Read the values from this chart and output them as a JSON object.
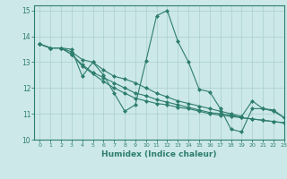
{
  "title": "",
  "xlabel": "Humidex (Indice chaleur)",
  "ylabel": "",
  "bg_color": "#cce8e8",
  "grid_color": "#aacfcf",
  "line_color": "#2d7d6e",
  "xlim": [
    -0.5,
    23
  ],
  "ylim": [
    10,
    15.2
  ],
  "yticks": [
    10,
    11,
    12,
    13,
    14,
    15
  ],
  "xticks": [
    0,
    1,
    2,
    3,
    4,
    5,
    6,
    7,
    8,
    9,
    10,
    11,
    12,
    13,
    14,
    15,
    16,
    17,
    18,
    19,
    20,
    21,
    22,
    23
  ],
  "series": [
    {
      "x": [
        0,
        1,
        2,
        3,
        4,
        5,
        6,
        7,
        8,
        9,
        10,
        11,
        12,
        13,
        14,
        15,
        16,
        17,
        18,
        19,
        20,
        21,
        22,
        23
      ],
      "y": [
        13.7,
        13.55,
        13.55,
        13.5,
        12.45,
        13.0,
        12.5,
        11.8,
        11.1,
        11.35,
        13.05,
        14.8,
        15.0,
        13.8,
        13.0,
        11.95,
        11.85,
        11.2,
        10.4,
        10.3,
        11.2,
        11.2,
        11.15,
        10.85
      ]
    },
    {
      "x": [
        0,
        1,
        2,
        3,
        4,
        5,
        6,
        7,
        8,
        9,
        10,
        11,
        12,
        13,
        14,
        15,
        16,
        17,
        18,
        19,
        20,
        21,
        22,
        23
      ],
      "y": [
        13.7,
        13.55,
        13.55,
        13.3,
        12.9,
        12.6,
        12.4,
        12.2,
        12.0,
        11.8,
        11.7,
        11.55,
        11.45,
        11.35,
        11.25,
        11.15,
        11.05,
        11.0,
        10.95,
        10.85,
        10.8,
        10.75,
        10.7,
        10.65
      ]
    },
    {
      "x": [
        0,
        1,
        2,
        3,
        4,
        5,
        6,
        7,
        8,
        9,
        10,
        11,
        12,
        13,
        14,
        15,
        16,
        17,
        18,
        19,
        20,
        21,
        22,
        23
      ],
      "y": [
        13.7,
        13.55,
        13.55,
        13.3,
        12.85,
        12.55,
        12.25,
        12.0,
        11.8,
        11.6,
        11.5,
        11.4,
        11.35,
        11.25,
        11.2,
        11.1,
        11.0,
        10.95,
        10.9,
        10.85,
        10.8,
        10.75,
        10.7,
        10.65
      ]
    },
    {
      "x": [
        0,
        1,
        2,
        3,
        4,
        5,
        6,
        7,
        8,
        9,
        10,
        11,
        12,
        13,
        14,
        15,
        16,
        17,
        18,
        19,
        20,
        21,
        22,
        23
      ],
      "y": [
        13.7,
        13.55,
        13.55,
        13.4,
        13.1,
        13.0,
        12.7,
        12.45,
        12.35,
        12.2,
        12.0,
        11.8,
        11.65,
        11.5,
        11.4,
        11.3,
        11.2,
        11.1,
        11.0,
        10.9,
        11.5,
        11.2,
        11.1,
        10.85
      ]
    }
  ]
}
